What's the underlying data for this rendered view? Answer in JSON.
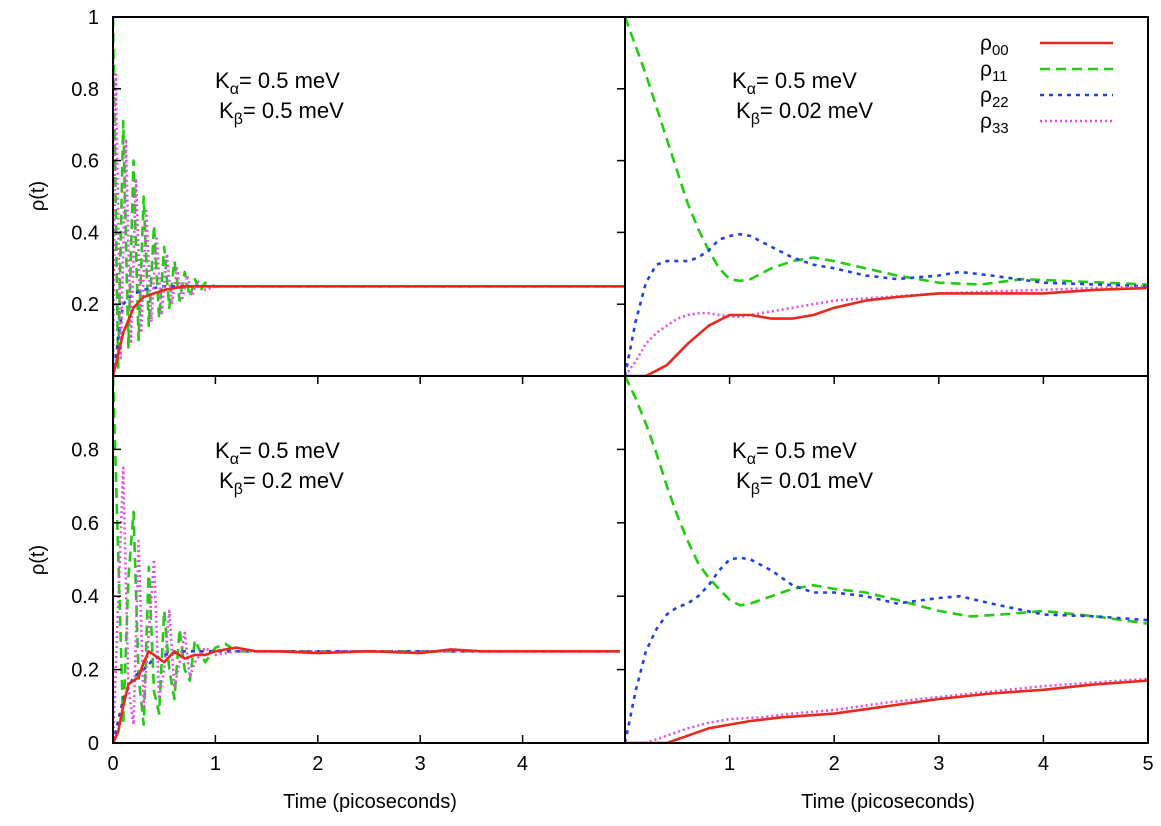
{
  "figure": {
    "ylabel": "ρ(t)",
    "xlabel": "Time (picoseconds)"
  },
  "legend": [
    {
      "sym": "ρ",
      "sub": "00",
      "color": "#e8291c",
      "dash": "solid"
    },
    {
      "sym": "ρ",
      "sub": "11",
      "color": "#22cc11",
      "dash": "10,6"
    },
    {
      "sym": "ρ",
      "sub": "22",
      "color": "#2244dd",
      "dash": "4,5"
    },
    {
      "sym": "ρ",
      "sub": "33",
      "color": "#e24fe6",
      "dash": "2,3"
    }
  ],
  "panels": [
    {
      "annotation": {
        "line1_base": "K",
        "line1_sub": "α",
        "line1_text": "= 0.5 meV",
        "line2_base": "K",
        "line2_sub": "β",
        "line2_text": "= 0.5 meV"
      },
      "yticks": [
        "0.2",
        "0.4",
        "0.6",
        "0.8",
        "1"
      ],
      "xticks": []
    },
    {
      "annotation": {
        "line1_base": "K",
        "line1_sub": "α",
        "line1_text": "= 0.5 meV",
        "line2_base": "K",
        "line2_sub": "β",
        "line2_text": "= 0.02 meV"
      },
      "yticks": [],
      "xticks": []
    },
    {
      "annotation": {
        "line1_base": "K",
        "line1_sub": "α",
        "line1_text": "= 0.5 meV",
        "line2_base": "K",
        "line2_sub": "β",
        "line2_text": "= 0.2 meV"
      },
      "yticks": [
        "0",
        "0.2",
        "0.4",
        "0.6",
        "0.8"
      ],
      "xticks": [
        "0",
        "1",
        "2",
        "3",
        "4"
      ]
    },
    {
      "annotation": {
        "line1_base": "K",
        "line1_sub": "α",
        "line1_text": "= 0.5 meV",
        "line2_base": "K",
        "line2_sub": "β",
        "line2_text": "= 0.01 meV"
      },
      "yticks": [],
      "xticks": [
        "1",
        "2",
        "3",
        "4",
        "5"
      ]
    }
  ],
  "chart_data": [
    {
      "type": "line",
      "panel": "top-left",
      "xlim": [
        0,
        5
      ],
      "ylim": [
        0,
        1
      ],
      "x_ticks": [],
      "y_ticks": [
        0.2,
        0.4,
        0.6,
        0.8,
        1
      ],
      "series": [
        {
          "name": "ρ00",
          "x": [
            0,
            0.1,
            0.2,
            0.3,
            0.5,
            0.7,
            1,
            5
          ],
          "y": [
            0.0,
            0.12,
            0.19,
            0.22,
            0.24,
            0.25,
            0.25,
            0.25
          ]
        },
        {
          "name": "ρ11",
          "x": [
            0,
            0.05,
            0.1,
            0.15,
            0.2,
            0.25,
            0.3,
            0.35,
            0.4,
            0.45,
            0.5,
            0.55,
            0.6,
            0.65,
            0.7,
            0.75,
            0.8,
            0.85,
            0.9,
            1.0,
            5
          ],
          "y": [
            1.0,
            0.02,
            0.71,
            0.08,
            0.6,
            0.1,
            0.5,
            0.14,
            0.42,
            0.16,
            0.36,
            0.19,
            0.32,
            0.21,
            0.29,
            0.22,
            0.27,
            0.235,
            0.26,
            0.25,
            0.25
          ]
        },
        {
          "name": "ρ22",
          "x": [
            0,
            0.1,
            0.2,
            0.3,
            0.5,
            0.8,
            1,
            5
          ],
          "y": [
            0.0,
            0.2,
            0.23,
            0.24,
            0.25,
            0.25,
            0.25,
            0.25
          ]
        },
        {
          "name": "ρ33",
          "x": [
            0,
            0.025,
            0.075,
            0.125,
            0.175,
            0.225,
            0.275,
            0.325,
            0.375,
            0.425,
            0.475,
            0.525,
            0.575,
            0.625,
            0.675,
            0.725,
            0.775,
            0.825,
            0.9,
            1.0,
            5
          ],
          "y": [
            0.0,
            0.84,
            0.05,
            0.66,
            0.09,
            0.55,
            0.12,
            0.46,
            0.15,
            0.39,
            0.17,
            0.34,
            0.2,
            0.3,
            0.21,
            0.28,
            0.225,
            0.265,
            0.24,
            0.25,
            0.25
          ]
        }
      ]
    },
    {
      "type": "line",
      "panel": "top-right",
      "xlim": [
        0,
        5
      ],
      "ylim": [
        0,
        1
      ],
      "x_ticks": [],
      "y_ticks": [],
      "series": [
        {
          "name": "ρ00",
          "x": [
            0,
            0.2,
            0.4,
            0.6,
            0.8,
            1.0,
            1.2,
            1.4,
            1.6,
            1.8,
            2.0,
            2.3,
            2.6,
            3.0,
            3.5,
            4.0,
            4.5,
            5.0
          ],
          "y": [
            0.0,
            0.0,
            0.03,
            0.09,
            0.14,
            0.17,
            0.17,
            0.16,
            0.16,
            0.17,
            0.19,
            0.21,
            0.22,
            0.23,
            0.23,
            0.23,
            0.24,
            0.245
          ]
        },
        {
          "name": "ρ11",
          "x": [
            0,
            0.1,
            0.2,
            0.3,
            0.4,
            0.5,
            0.6,
            0.7,
            0.8,
            0.9,
            1.0,
            1.1,
            1.2,
            1.4,
            1.6,
            1.8,
            2.0,
            2.3,
            2.6,
            3.0,
            3.4,
            3.8,
            4.2,
            4.6,
            5.0
          ],
          "y": [
            1.0,
            0.92,
            0.84,
            0.75,
            0.66,
            0.57,
            0.48,
            0.41,
            0.35,
            0.3,
            0.27,
            0.265,
            0.27,
            0.3,
            0.32,
            0.33,
            0.32,
            0.3,
            0.28,
            0.26,
            0.255,
            0.27,
            0.265,
            0.26,
            0.255
          ]
        },
        {
          "name": "ρ22",
          "x": [
            0,
            0.1,
            0.2,
            0.3,
            0.4,
            0.5,
            0.6,
            0.7,
            0.8,
            0.9,
            1.0,
            1.1,
            1.2,
            1.4,
            1.6,
            1.8,
            2.0,
            2.3,
            2.6,
            3.0,
            3.2,
            3.5,
            4.0,
            4.5,
            5.0
          ],
          "y": [
            0.0,
            0.15,
            0.26,
            0.31,
            0.32,
            0.32,
            0.32,
            0.33,
            0.35,
            0.38,
            0.39,
            0.395,
            0.39,
            0.36,
            0.33,
            0.31,
            0.3,
            0.28,
            0.27,
            0.28,
            0.29,
            0.28,
            0.26,
            0.255,
            0.25
          ]
        },
        {
          "name": "ρ33",
          "x": [
            0,
            0.1,
            0.2,
            0.3,
            0.4,
            0.5,
            0.6,
            0.7,
            0.8,
            0.9,
            1.0,
            1.1,
            1.2,
            1.4,
            1.6,
            1.8,
            2.0,
            2.5,
            3.0,
            3.5,
            4.0,
            4.5,
            5.0
          ],
          "y": [
            0.0,
            0.04,
            0.09,
            0.12,
            0.14,
            0.16,
            0.17,
            0.175,
            0.175,
            0.17,
            0.165,
            0.165,
            0.17,
            0.18,
            0.19,
            0.2,
            0.21,
            0.22,
            0.23,
            0.235,
            0.24,
            0.245,
            0.25
          ]
        }
      ]
    },
    {
      "type": "line",
      "panel": "bottom-left",
      "xlim": [
        0,
        5
      ],
      "ylim": [
        0,
        1
      ],
      "x_ticks": [
        0,
        1,
        2,
        3,
        4
      ],
      "y_ticks": [
        0,
        0.2,
        0.4,
        0.6,
        0.8
      ],
      "series": [
        {
          "name": "ρ00",
          "x": [
            0,
            0.05,
            0.1,
            0.15,
            0.2,
            0.25,
            0.3,
            0.35,
            0.4,
            0.5,
            0.6,
            0.7,
            0.8,
            0.9,
            1.0,
            1.1,
            1.2,
            1.4,
            1.6,
            2.0,
            2.5,
            3.0,
            3.3,
            3.6,
            4.0,
            4.5,
            4.95
          ],
          "y": [
            0.0,
            0.03,
            0.1,
            0.16,
            0.17,
            0.18,
            0.22,
            0.25,
            0.24,
            0.22,
            0.25,
            0.23,
            0.24,
            0.24,
            0.25,
            0.255,
            0.26,
            0.25,
            0.25,
            0.245,
            0.25,
            0.245,
            0.255,
            0.25,
            0.25,
            0.25,
            0.25
          ]
        },
        {
          "name": "ρ11",
          "x": [
            0,
            0.1,
            0.15,
            0.2,
            0.25,
            0.3,
            0.35,
            0.4,
            0.45,
            0.5,
            0.55,
            0.6,
            0.65,
            0.7,
            0.75,
            0.8,
            0.9,
            1.0,
            1.1,
            1.2,
            1.4,
            2.0,
            3.0,
            4.95
          ],
          "y": [
            1.0,
            0.05,
            0.45,
            0.63,
            0.18,
            0.05,
            0.48,
            0.14,
            0.08,
            0.36,
            0.2,
            0.12,
            0.31,
            0.2,
            0.17,
            0.28,
            0.22,
            0.26,
            0.27,
            0.25,
            0.25,
            0.25,
            0.25,
            0.25
          ]
        },
        {
          "name": "ρ22",
          "x": [
            0,
            0.1,
            0.2,
            0.3,
            0.4,
            0.5,
            0.7,
            1.0,
            2.0,
            4.95
          ],
          "y": [
            0.0,
            0.12,
            0.18,
            0.2,
            0.23,
            0.24,
            0.25,
            0.25,
            0.25,
            0.25
          ]
        },
        {
          "name": "ρ33",
          "x": [
            0,
            0.1,
            0.15,
            0.2,
            0.25,
            0.3,
            0.35,
            0.4,
            0.45,
            0.5,
            0.55,
            0.6,
            0.65,
            0.7,
            0.75,
            0.8,
            0.9,
            1.0,
            1.2,
            2.0,
            4.95
          ],
          "y": [
            0.0,
            0.75,
            0.15,
            0.05,
            0.55,
            0.1,
            0.3,
            0.5,
            0.12,
            0.2,
            0.36,
            0.15,
            0.22,
            0.3,
            0.18,
            0.22,
            0.26,
            0.24,
            0.25,
            0.25,
            0.25
          ]
        }
      ]
    },
    {
      "type": "line",
      "panel": "bottom-right",
      "xlim": [
        0,
        5
      ],
      "ylim": [
        0,
        1
      ],
      "x_ticks": [
        1,
        2,
        3,
        4,
        5
      ],
      "y_ticks": [],
      "series": [
        {
          "name": "ρ00",
          "x": [
            0,
            0.4,
            0.6,
            0.8,
            1.0,
            1.2,
            1.5,
            2.0,
            2.5,
            3.0,
            3.5,
            4.0,
            4.5,
            5.0
          ],
          "y": [
            0.0,
            0.0,
            0.02,
            0.04,
            0.05,
            0.06,
            0.07,
            0.08,
            0.1,
            0.12,
            0.135,
            0.145,
            0.16,
            0.17
          ]
        },
        {
          "name": "ρ11",
          "x": [
            0,
            0.1,
            0.2,
            0.3,
            0.4,
            0.5,
            0.6,
            0.7,
            0.8,
            0.9,
            1.0,
            1.1,
            1.2,
            1.4,
            1.6,
            1.8,
            2.0,
            2.3,
            2.6,
            3.0,
            3.3,
            3.6,
            4.0,
            4.5,
            5.0
          ],
          "y": [
            1.0,
            0.94,
            0.87,
            0.79,
            0.7,
            0.62,
            0.55,
            0.49,
            0.45,
            0.42,
            0.39,
            0.375,
            0.38,
            0.4,
            0.42,
            0.43,
            0.42,
            0.41,
            0.39,
            0.36,
            0.345,
            0.35,
            0.36,
            0.345,
            0.325
          ]
        },
        {
          "name": "ρ22",
          "x": [
            0,
            0.1,
            0.2,
            0.3,
            0.4,
            0.5,
            0.6,
            0.7,
            0.8,
            0.9,
            1.0,
            1.1,
            1.2,
            1.4,
            1.6,
            1.8,
            2.0,
            2.3,
            2.6,
            3.0,
            3.2,
            3.5,
            4.0,
            4.5,
            5.0
          ],
          "y": [
            0.0,
            0.14,
            0.25,
            0.31,
            0.35,
            0.37,
            0.38,
            0.4,
            0.43,
            0.47,
            0.5,
            0.505,
            0.5,
            0.47,
            0.43,
            0.41,
            0.41,
            0.4,
            0.38,
            0.395,
            0.4,
            0.38,
            0.35,
            0.345,
            0.335
          ]
        },
        {
          "name": "ρ33",
          "x": [
            0,
            0.2,
            0.4,
            0.6,
            0.8,
            1.0,
            1.3,
            1.6,
            2.0,
            2.5,
            3.0,
            3.5,
            4.0,
            4.5,
            5.0
          ],
          "y": [
            0.0,
            0.0,
            0.02,
            0.04,
            0.055,
            0.065,
            0.07,
            0.08,
            0.09,
            0.11,
            0.125,
            0.14,
            0.155,
            0.165,
            0.175
          ]
        }
      ]
    }
  ]
}
